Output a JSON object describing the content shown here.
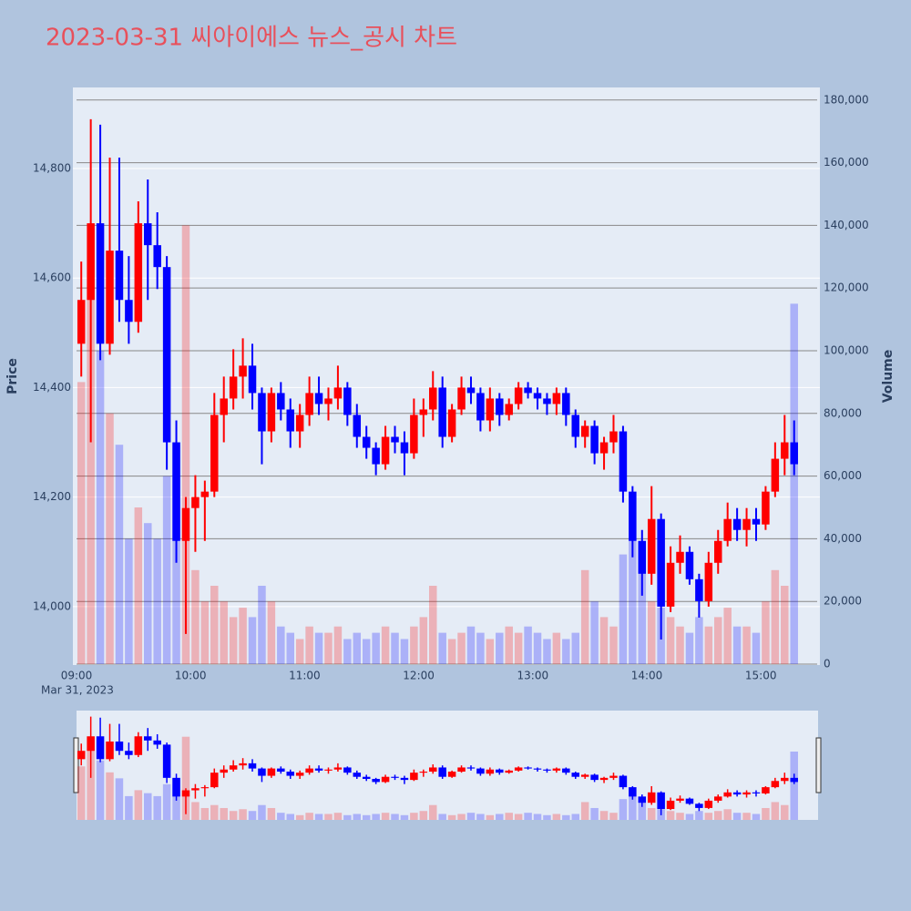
{
  "chart_data": {
    "type": "candlestick",
    "title": "2023-03-31 씨아이에스 뉴스_공시 차트",
    "ylabel": "Price",
    "y2label": "Volume",
    "xdate": "Mar 31, 2023",
    "increasing_color": "#ff0000",
    "decreasing_color": "#0000ff",
    "x": [
      "09:00",
      "09:05",
      "09:10",
      "09:15",
      "09:20",
      "09:25",
      "09:30",
      "09:35",
      "09:40",
      "09:45",
      "09:50",
      "09:55",
      "10:00",
      "10:05",
      "10:10",
      "10:15",
      "10:20",
      "10:25",
      "10:30",
      "10:35",
      "10:40",
      "10:45",
      "10:50",
      "10:55",
      "11:00",
      "11:05",
      "11:10",
      "11:15",
      "11:20",
      "11:25",
      "11:30",
      "11:35",
      "11:40",
      "11:45",
      "11:50",
      "11:55",
      "12:00",
      "12:05",
      "12:10",
      "12:15",
      "12:20",
      "12:25",
      "12:30",
      "12:35",
      "12:40",
      "12:45",
      "12:50",
      "12:55",
      "13:00",
      "13:05",
      "13:10",
      "13:15",
      "13:20",
      "13:25",
      "13:30",
      "13:35",
      "13:40",
      "13:45",
      "13:50",
      "13:55",
      "14:00",
      "14:05",
      "14:10",
      "14:15",
      "14:20",
      "14:25",
      "14:30",
      "14:35",
      "14:40",
      "14:45",
      "14:50",
      "14:55",
      "15:00",
      "15:05",
      "15:10",
      "15:15"
    ],
    "open": [
      14480,
      14560,
      14700,
      14480,
      14650,
      14560,
      14520,
      14700,
      14660,
      14620,
      14300,
      14120,
      14180,
      14200,
      14210,
      14350,
      14380,
      14420,
      14440,
      14390,
      14320,
      14390,
      14360,
      14320,
      14350,
      14390,
      14370,
      14380,
      14400,
      14350,
      14310,
      14290,
      14260,
      14310,
      14300,
      14280,
      14350,
      14360,
      14400,
      14310,
      14360,
      14400,
      14390,
      14340,
      14380,
      14350,
      14370,
      14400,
      14390,
      14380,
      14370,
      14390,
      14350,
      14310,
      14330,
      14280,
      14300,
      14320,
      14210,
      14120,
      14060,
      14160,
      14000,
      14080,
      14100,
      14050,
      14010,
      14080,
      14120,
      14160,
      14140,
      14160,
      14150,
      14210,
      14270,
      14300
    ],
    "high": [
      14630,
      14890,
      14880,
      14820,
      14820,
      14640,
      14740,
      14780,
      14720,
      14640,
      14340,
      14200,
      14240,
      14230,
      14390,
      14420,
      14470,
      14490,
      14480,
      14400,
      14400,
      14410,
      14380,
      14370,
      14420,
      14420,
      14400,
      14440,
      14410,
      14370,
      14330,
      14300,
      14330,
      14330,
      14320,
      14380,
      14380,
      14430,
      14420,
      14370,
      14420,
      14420,
      14400,
      14400,
      14390,
      14380,
      14410,
      14410,
      14400,
      14390,
      14400,
      14400,
      14360,
      14340,
      14340,
      14310,
      14350,
      14330,
      14220,
      14140,
      14220,
      14170,
      14110,
      14130,
      14110,
      14060,
      14100,
      14140,
      14190,
      14180,
      14180,
      14180,
      14220,
      14300,
      14350,
      14340
    ],
    "low": [
      14420,
      14300,
      14450,
      14460,
      14520,
      14480,
      14500,
      14560,
      14580,
      14250,
      14080,
      13950,
      14100,
      14120,
      14200,
      14300,
      14360,
      14380,
      14360,
      14260,
      14300,
      14340,
      14290,
      14290,
      14330,
      14350,
      14340,
      14360,
      14330,
      14290,
      14270,
      14240,
      14250,
      14280,
      14240,
      14270,
      14310,
      14340,
      14290,
      14300,
      14350,
      14370,
      14320,
      14320,
      14330,
      14340,
      14360,
      14380,
      14360,
      14350,
      14350,
      14330,
      14290,
      14290,
      14260,
      14250,
      14280,
      14190,
      14090,
      14020,
      14040,
      13940,
      13990,
      14060,
      14040,
      13980,
      14000,
      14060,
      14110,
      14120,
      14110,
      14120,
      14140,
      14200,
      14240,
      14240
    ],
    "close": [
      14560,
      14700,
      14480,
      14650,
      14560,
      14520,
      14700,
      14660,
      14620,
      14300,
      14120,
      14180,
      14200,
      14210,
      14350,
      14380,
      14420,
      14440,
      14390,
      14320,
      14390,
      14360,
      14320,
      14350,
      14390,
      14370,
      14380,
      14400,
      14350,
      14310,
      14290,
      14260,
      14310,
      14300,
      14280,
      14350,
      14360,
      14400,
      14310,
      14360,
      14400,
      14390,
      14340,
      14380,
      14350,
      14370,
      14400,
      14390,
      14380,
      14370,
      14390,
      14350,
      14310,
      14330,
      14280,
      14300,
      14320,
      14210,
      14120,
      14060,
      14160,
      14000,
      14080,
      14100,
      14050,
      14010,
      14080,
      14120,
      14160,
      14140,
      14160,
      14150,
      14210,
      14270,
      14300,
      14260
    ],
    "volume": [
      90000,
      140000,
      100000,
      80000,
      70000,
      40000,
      50000,
      45000,
      40000,
      60000,
      70000,
      140000,
      30000,
      20000,
      25000,
      20000,
      15000,
      18000,
      15000,
      25000,
      20000,
      12000,
      10000,
      8000,
      12000,
      10000,
      10000,
      12000,
      8000,
      10000,
      8000,
      10000,
      12000,
      10000,
      8000,
      12000,
      15000,
      25000,
      10000,
      8000,
      10000,
      12000,
      10000,
      8000,
      10000,
      12000,
      10000,
      12000,
      10000,
      8000,
      10000,
      8000,
      10000,
      30000,
      20000,
      15000,
      12000,
      35000,
      40000,
      30000,
      20000,
      18000,
      15000,
      12000,
      10000,
      15000,
      12000,
      15000,
      18000,
      12000,
      12000,
      10000,
      20000,
      30000,
      25000,
      115000
    ],
    "xticks": [
      "09:00",
      "10:00",
      "11:00",
      "12:00",
      "13:00",
      "14:00",
      "15:00"
    ],
    "ylim": [
      13895,
      14948
    ],
    "yticks": [
      {
        "value": 14000,
        "label": "14,000"
      },
      {
        "value": 14200,
        "label": "14,200"
      },
      {
        "value": 14400,
        "label": "14,400"
      },
      {
        "value": 14600,
        "label": "14,600"
      },
      {
        "value": 14800,
        "label": "14,800"
      }
    ],
    "y2lim": [
      0,
      184000
    ],
    "y2ticks": [
      0,
      {
        "value": 20000,
        "label": "20,000"
      },
      {
        "value": 40000,
        "label": "40,000"
      },
      {
        "value": 60000,
        "label": "60,000"
      },
      {
        "value": 80000,
        "label": "80,000"
      },
      {
        "value": 100000,
        "label": "100,000"
      },
      {
        "value": 120000,
        "label": "120,000"
      },
      {
        "value": 140000,
        "label": "140,000"
      },
      {
        "value": 160000,
        "label": "160,000"
      },
      {
        "value": 180000,
        "label": "180,000"
      }
    ],
    "grid": true
  }
}
